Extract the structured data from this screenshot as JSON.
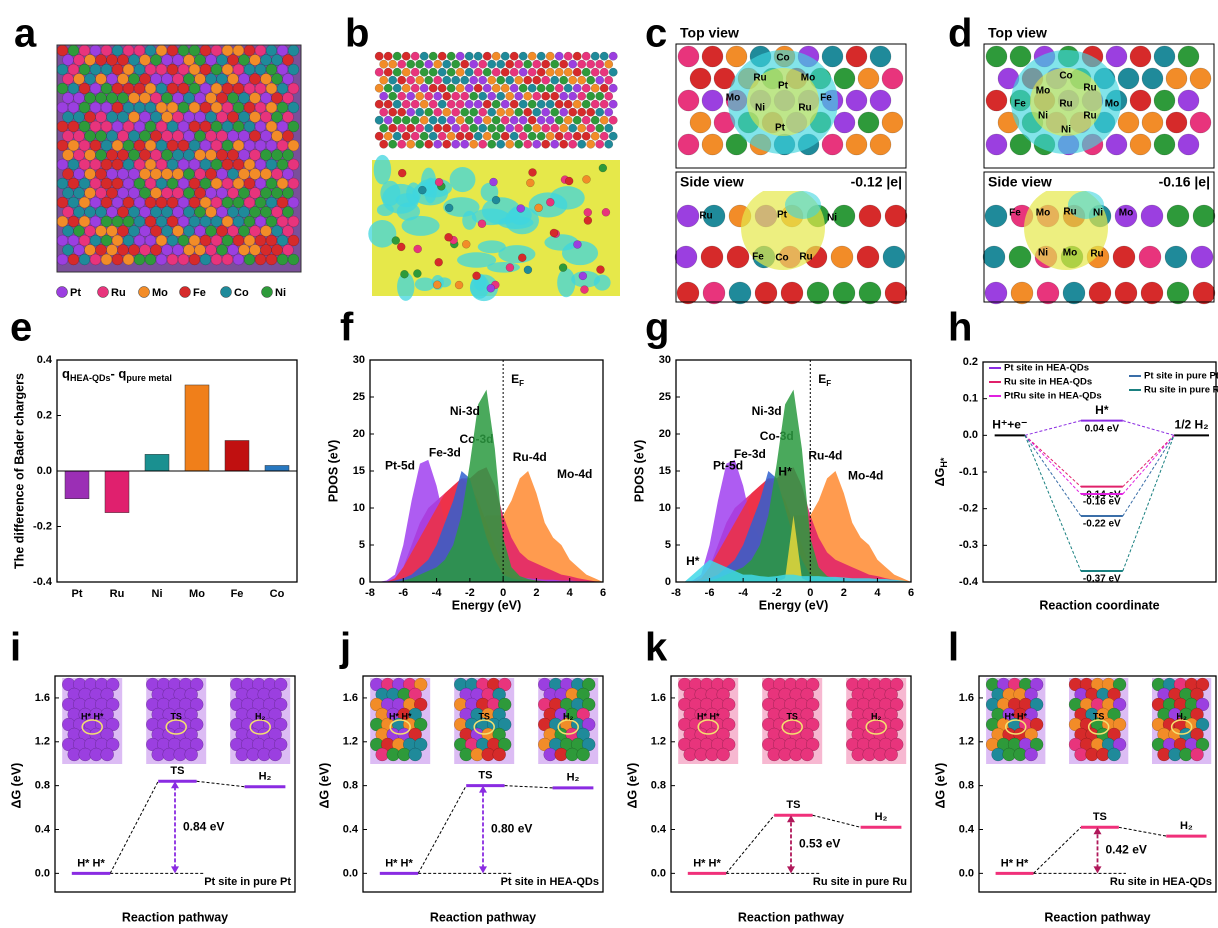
{
  "panel_letters": [
    "a",
    "b",
    "c",
    "d",
    "e",
    "f",
    "g",
    "h",
    "i",
    "j",
    "k",
    "l"
  ],
  "element_legend": [
    {
      "name": "Pt",
      "color": "#9b3fe0"
    },
    {
      "name": "Ru",
      "color": "#e8347c"
    },
    {
      "name": "Mo",
      "color": "#f28c28"
    },
    {
      "name": "Fe",
      "color": "#d62a2a"
    },
    {
      "name": "Co",
      "color": "#1f8a9a"
    },
    {
      "name": "Ni",
      "color": "#2e9a3a"
    }
  ],
  "panel_c": {
    "top_title": "Top view",
    "side_title": "Side view",
    "charge": "-0.12 |e|",
    "top_atoms": [
      "Co",
      "Ru",
      "Mo",
      "Pt",
      "Fe",
      "Mo",
      "Ni",
      "Ru",
      "Pt"
    ],
    "side_atoms": [
      "Ru",
      "Pt",
      "Ni",
      "Fe",
      "Co",
      "Ru"
    ]
  },
  "panel_d": {
    "top_title": "Top view",
    "side_title": "Side view",
    "charge": "-0.16 |e|",
    "top_atoms": [
      "Co",
      "Ru",
      "Fe",
      "Mo",
      "Ru",
      "Mo",
      "Ni",
      "Ni",
      "Ru"
    ],
    "side_atoms": [
      "Fe",
      "Mo",
      "Ru",
      "Ni",
      "Mo",
      "Ni",
      "Mo",
      "Ru"
    ]
  },
  "chart_data": [
    {
      "type": "bar",
      "annotation": {
        "q1": "q",
        "sub1": "HEA-QDs",
        "mid": "- q",
        "sub2": "pure metal"
      },
      "ylabel": "The difference of Bader chargers",
      "categories": [
        "Pt",
        "Ru",
        "Ni",
        "Mo",
        "Fe",
        "Co"
      ],
      "values": [
        -0.1,
        -0.15,
        0.06,
        0.31,
        0.11,
        0.02
      ],
      "colors": [
        "#9b2fb5",
        "#e0206e",
        "#1a9090",
        "#f07f1a",
        "#c01010",
        "#2878c0"
      ],
      "ylim": [
        -0.4,
        0.4
      ],
      "yticks": [
        -0.4,
        -0.2,
        {
          "value": 0,
          "label": "0.0"
        },
        0.2,
        0.4
      ]
    },
    {
      "type": "area",
      "xlabel": "Energy (eV)",
      "ylabel": "PDOS (eV)",
      "fermi_label": {
        "main": "E",
        "sub": "F"
      },
      "fermi_level": 0,
      "x": [
        -7.5,
        -7,
        -6.5,
        -6,
        -5.5,
        -5,
        -4.5,
        -4,
        -3.5,
        -3,
        -2.5,
        -2,
        -1.5,
        -1,
        -0.5,
        0,
        0.5,
        1,
        1.5,
        2,
        2.5,
        3,
        3.5,
        4,
        4.5,
        5,
        5.5,
        6
      ],
      "series": [
        {
          "name": "Mo-4d",
          "color": "#ff8a30",
          "values": [
            0,
            0,
            0.2,
            0.5,
            1,
            1.5,
            2,
            3,
            4,
            5,
            6,
            7,
            8,
            9,
            9,
            9,
            11,
            14,
            15,
            12,
            8,
            6,
            5,
            3,
            2,
            1,
            0.5,
            0
          ]
        },
        {
          "name": "Ru-4d",
          "color": "#e0206a",
          "values": [
            0,
            0,
            0.5,
            2,
            5,
            8,
            10,
            11,
            12,
            13,
            14,
            14,
            15,
            15.5,
            13,
            9,
            6,
            4,
            3,
            2.5,
            2,
            1.5,
            1,
            0.8,
            0.5,
            0.3,
            0.1,
            0
          ]
        },
        {
          "name": "Pt-5d",
          "color": "#a040f0",
          "values": [
            0,
            0.2,
            1,
            5,
            11,
            16,
            16.5,
            13,
            8,
            6,
            5,
            4.5,
            3.5,
            2.5,
            1.8,
            1.2,
            0.8,
            0.6,
            0.5,
            0.4,
            0.3,
            0.3,
            0.2,
            0.2,
            0.1,
            0.1,
            0,
            0
          ]
        },
        {
          "name": "Fe-3d",
          "color": "#f03040",
          "values": [
            0,
            0,
            0.5,
            2,
            4,
            6,
            8,
            10,
            12,
            13,
            14,
            13,
            11,
            8,
            5,
            2,
            1,
            0.5,
            0.3,
            0.2,
            0.1,
            0,
            0,
            0,
            0,
            0,
            0,
            0
          ]
        },
        {
          "name": "Co-3d",
          "color": "#3060d0",
          "values": [
            0,
            0,
            0.2,
            0.5,
            1,
            2,
            3,
            5,
            8,
            11,
            15,
            14,
            10,
            6,
            3,
            1,
            0.5,
            0.3,
            0.2,
            0.1,
            0,
            0,
            0,
            0,
            0,
            0,
            0,
            0
          ]
        },
        {
          "name": "Ni-3d",
          "color": "#2a9a40",
          "values": [
            0,
            0,
            0,
            0.2,
            0.5,
            1,
            1.5,
            2,
            3,
            5,
            9,
            16,
            24,
            26,
            18,
            6,
            2,
            0.8,
            0.4,
            0.2,
            0.1,
            0,
            0,
            0,
            0,
            0,
            0,
            0
          ]
        }
      ],
      "xlim": [
        -8,
        6
      ],
      "xticks": [
        -8,
        -6,
        -4,
        -2,
        0,
        2,
        4,
        6
      ],
      "ylim": [
        0,
        30
      ],
      "yticks": [
        0,
        5,
        10,
        15,
        20,
        25,
        30
      ]
    },
    {
      "type": "area",
      "xlabel": "Energy (eV)",
      "ylabel": "PDOS (eV)",
      "fermi_label": {
        "main": "E",
        "sub": "F"
      },
      "fermi_level": 0,
      "x": [
        -7.5,
        -7,
        -6.5,
        -6,
        -5.5,
        -5,
        -4.5,
        -4,
        -3.5,
        -3,
        -2.5,
        -2,
        -1.5,
        -1,
        -0.5,
        0,
        0.5,
        1,
        1.5,
        2,
        2.5,
        3,
        3.5,
        4,
        4.5,
        5,
        5.5,
        6
      ],
      "series": [
        {
          "name": "Mo-4d",
          "color": "#ff8a30",
          "values": [
            0,
            0,
            0.2,
            0.5,
            1,
            1.5,
            2,
            3,
            4,
            5,
            6,
            7,
            8,
            9,
            9,
            9,
            11,
            14,
            15,
            12,
            8,
            6,
            5,
            3,
            2,
            1,
            0.5,
            0
          ]
        },
        {
          "name": "Ru-4d",
          "color": "#e0206a",
          "values": [
            0,
            0,
            0.5,
            2,
            5,
            8,
            10,
            11,
            12,
            13,
            14,
            14,
            15,
            15.5,
            13,
            9,
            6,
            4,
            3,
            2.5,
            2,
            1.5,
            1,
            0.8,
            0.5,
            0.3,
            0.1,
            0
          ]
        },
        {
          "name": "Pt-5d",
          "color": "#a040f0",
          "values": [
            0,
            0.2,
            1,
            5,
            11,
            16,
            16.5,
            13,
            8,
            6,
            5,
            4.5,
            3.5,
            2.5,
            1.8,
            1.2,
            0.8,
            0.6,
            0.5,
            0.4,
            0.3,
            0.3,
            0.2,
            0.2,
            0.1,
            0.1,
            0,
            0
          ]
        },
        {
          "name": "Fe-3d",
          "color": "#f03040",
          "values": [
            0,
            0,
            0.5,
            2,
            4,
            6,
            8,
            10,
            12,
            13,
            14,
            13,
            11,
            8,
            5,
            2,
            1,
            0.5,
            0.3,
            0.2,
            0.1,
            0,
            0,
            0,
            0,
            0,
            0,
            0
          ]
        },
        {
          "name": "Co-3d",
          "color": "#3060d0",
          "values": [
            0,
            0,
            0.2,
            0.5,
            1,
            2,
            3,
            5,
            8,
            11,
            15,
            14,
            10,
            6,
            3,
            1,
            0.5,
            0.3,
            0.2,
            0.1,
            0,
            0,
            0,
            0,
            0,
            0,
            0,
            0
          ]
        },
        {
          "name": "Ni-3d",
          "color": "#2a9a40",
          "values": [
            0,
            0,
            0,
            0.2,
            0.5,
            1,
            1.5,
            2,
            3,
            5,
            9,
            16,
            24,
            26,
            18,
            6,
            2,
            0.8,
            0.4,
            0.2,
            0.1,
            0,
            0,
            0,
            0,
            0,
            0,
            0
          ]
        },
        {
          "name": "H*",
          "color": "#e6d83a",
          "values": [
            0,
            0,
            0,
            0,
            0,
            0,
            0,
            0,
            0,
            0,
            0,
            0,
            0.5,
            9,
            0.5,
            0,
            0,
            0,
            0,
            0,
            0,
            0,
            0,
            0,
            0,
            0,
            0,
            0
          ]
        },
        {
          "name": "H*",
          "color": "#40d8e8",
          "values": [
            0,
            1,
            2,
            3,
            2.5,
            2,
            1.5,
            1,
            1,
            0.8,
            0.7,
            0.8,
            1,
            1,
            0.8,
            0.8,
            0.8,
            0.7,
            0.7,
            0.6,
            0.5,
            0.5,
            0.5,
            0.4,
            0.4,
            0.3,
            0.2,
            0
          ]
        }
      ],
      "xlim": [
        -8,
        6
      ],
      "xticks": [
        -8,
        -6,
        -4,
        -2,
        0,
        2,
        4,
        6
      ],
      "ylim": [
        0,
        30
      ],
      "yticks": [
        0,
        5,
        10,
        15,
        20,
        25,
        30
      ]
    },
    {
      "type": "energy_diagram",
      "ylabel": {
        "main": "ΔG",
        "sub": "H*"
      },
      "xlabel": "Reaction coordinate",
      "states": [
        "H⁺+e⁻",
        "H*",
        "1/2 H₂"
      ],
      "initial_value": 0,
      "final_value": 0,
      "series": [
        {
          "name": "Pt site in HEA-QDs",
          "color": "#8a2be2",
          "value": 0.04,
          "value_label": "0.04 eV"
        },
        {
          "name": "Ru site in HEA-QDs",
          "color": "#e0206a",
          "value": -0.14,
          "value_label": "-0.14 eV"
        },
        {
          "name": "PtRu site in HEA-QDs",
          "color": "#e020e0",
          "value": -0.16,
          "value_label": "-0.16 eV"
        },
        {
          "name": "Pt site in pure Pt",
          "color": "#3a6ea8",
          "value": -0.22,
          "value_label": "-0.22 eV"
        },
        {
          "name": "Ru site in pure Ru",
          "color": "#1a8080",
          "value": -0.37,
          "value_label": "-0.37 eV"
        }
      ],
      "ylim": [
        -0.4,
        0.2
      ],
      "yticks": [
        -0.4,
        -0.3,
        -0.2,
        -0.1,
        {
          "value": 0,
          "label": "0.0"
        },
        0.1,
        0.2
      ]
    },
    {
      "type": "pathway",
      "ylabel": "ΔG (eV)",
      "xlabel": "Reaction pathway",
      "states": [
        "H* H*",
        "TS",
        "H₂"
      ],
      "values": [
        0,
        0.84,
        0.79
      ],
      "barrier": 0.84,
      "barrier_label": "0.84 eV",
      "site": "Pt site in pure Pt",
      "color": "#8a2be2",
      "label_color": "#8a2be2",
      "inset_colors": [
        "#9b3fe0"
      ],
      "ylim": [
        -0.17,
        1.8
      ],
      "yticks": [
        {
          "value": 0,
          "label": "0.0"
        },
        0.4,
        0.8,
        1.2,
        1.6
      ]
    },
    {
      "type": "pathway",
      "ylabel": "ΔG (eV)",
      "xlabel": "Reaction pathway",
      "states": [
        "H* H*",
        "TS",
        "H₂"
      ],
      "values": [
        0,
        0.8,
        0.78
      ],
      "barrier": 0.8,
      "barrier_label": "0.80 eV",
      "site": "Pt site in HEA-QDs",
      "color": "#8a2be2",
      "label_color": "#8a2be2",
      "inset_colors": [
        "#9b3fe0",
        "#e8347c",
        "#f28c28",
        "#d62a2a",
        "#1f8a9a",
        "#2e9a3a"
      ],
      "ylim": [
        -0.17,
        1.8
      ],
      "yticks": [
        {
          "value": 0,
          "label": "0.0"
        },
        0.4,
        0.8,
        1.2,
        1.6
      ]
    },
    {
      "type": "pathway",
      "ylabel": "ΔG (eV)",
      "xlabel": "Reaction pathway",
      "states": [
        "H* H*",
        "TS",
        "H₂"
      ],
      "values": [
        0,
        0.53,
        0.42
      ],
      "barrier": 0.53,
      "barrier_label": "0.53 eV",
      "site": "Ru site in pure Ru",
      "color": "#f0307a",
      "label_color": "#b0185a",
      "inset_colors": [
        "#e8347c"
      ],
      "ylim": [
        -0.17,
        1.8
      ],
      "yticks": [
        {
          "value": 0,
          "label": "0.0"
        },
        0.4,
        0.8,
        1.2,
        1.6
      ]
    },
    {
      "type": "pathway",
      "ylabel": "ΔG (eV)",
      "xlabel": "Reaction pathway",
      "states": [
        "H* H*",
        "TS",
        "H₂"
      ],
      "values": [
        0,
        0.42,
        0.34
      ],
      "barrier": 0.42,
      "barrier_label": "0.42 eV",
      "site": "Ru site in HEA-QDs",
      "color": "#f0307a",
      "label_color": "#b0185a",
      "inset_colors": [
        "#9b3fe0",
        "#e8347c",
        "#f28c28",
        "#d62a2a",
        "#1f8a9a",
        "#2e9a3a"
      ],
      "ylim": [
        -0.17,
        1.8
      ],
      "yticks": [
        {
          "value": 0,
          "label": "0.0"
        },
        0.4,
        0.8,
        1.2,
        1.6
      ]
    }
  ]
}
